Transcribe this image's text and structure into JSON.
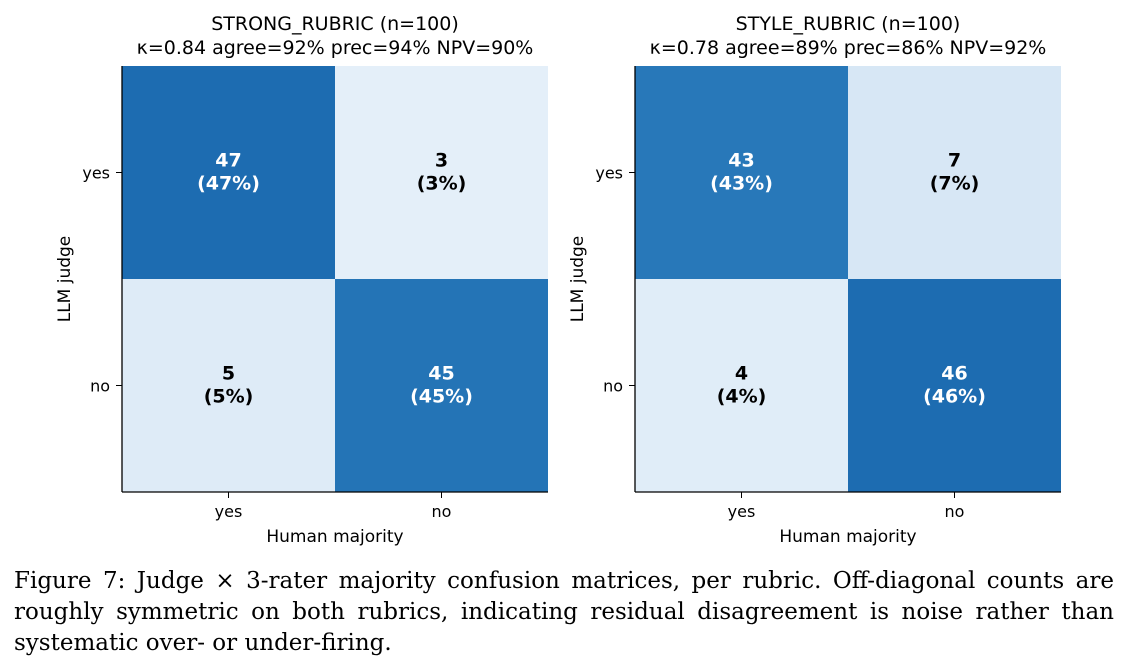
{
  "chart_data": [
    {
      "type": "heatmap",
      "title": "STRONG_RUBRIC (n=100)",
      "subtitle": "κ=0.84  agree=92%  prec=94%  NPV=90%",
      "xlabel": "Human majority",
      "ylabel": "LLM judge",
      "x_categories": [
        "yes",
        "no"
      ],
      "y_categories": [
        "yes",
        "no"
      ],
      "values": [
        [
          47,
          3
        ],
        [
          5,
          45
        ]
      ],
      "labels": [
        [
          "47\n(47%)",
          "3\n(3%)"
        ],
        [
          "5\n(5%)",
          "45\n(45%)"
        ]
      ],
      "colormap": "Blues",
      "vmax": 47
    },
    {
      "type": "heatmap",
      "title": "STYLE_RUBRIC (n=100)",
      "subtitle": "κ=0.78  agree=89%  prec=86%  NPV=92%",
      "xlabel": "Human majority",
      "ylabel": "LLM judge",
      "x_categories": [
        "yes",
        "no"
      ],
      "y_categories": [
        "yes",
        "no"
      ],
      "values": [
        [
          43,
          7
        ],
        [
          4,
          46
        ]
      ],
      "labels": [
        [
          "43\n(43%)",
          "7\n(7%)"
        ],
        [
          "4\n(4%)",
          "46\n(46%)"
        ]
      ],
      "colormap": "Blues",
      "vmax": 46
    }
  ],
  "caption": {
    "text": "Figure 7: Judge × 3-rater majority confusion matrices, per rubric. Off-diagonal counts are roughly symmetric on both rubrics, indicating residual disagreement is noise rather than systematic over- or under-firing."
  }
}
